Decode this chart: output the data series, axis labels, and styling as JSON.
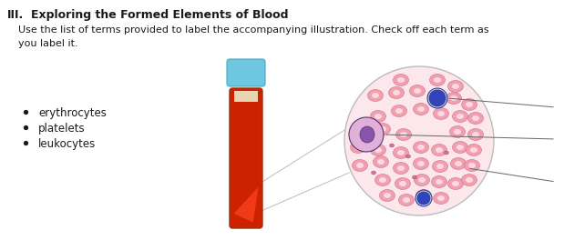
{
  "title": "III.",
  "title_bold": "Exploring the Formed Elements of Blood",
  "paragraph": "Use the list of terms provided to label the accompanying illustration. Check off each term as\nyou label it.",
  "bullet_items": [
    "erythrocytes",
    "platelets",
    "leukocytes"
  ],
  "bg_color": "#ffffff",
  "text_color": "#1a1a1a",
  "tube_body_color": "#cc2200",
  "tube_cap_color": "#6ec6e0",
  "tube_serum_color": "#e0c8b0",
  "tube_neck_color": "#88bbcc",
  "circle_bg": "#fce8ec",
  "circle_edge": "#bbbbbb",
  "rbc_color": "#f0a0b0",
  "rbc_center": "#fcd8e0",
  "rbc_edge": "#d07080",
  "leuko_large_body": "#e0b0d8",
  "leuko_large_nucleus": "#8855aa",
  "leuko_large_edge": "#553377",
  "leuko_small_body": "#c0c8ee",
  "leuko_small_nucleus": "#3344bb",
  "leuko_small_edge": "#223388",
  "platelet_color": "#cc6688",
  "line_color": "#666666",
  "figsize": [
    6.19,
    2.64
  ],
  "dpi": 100
}
